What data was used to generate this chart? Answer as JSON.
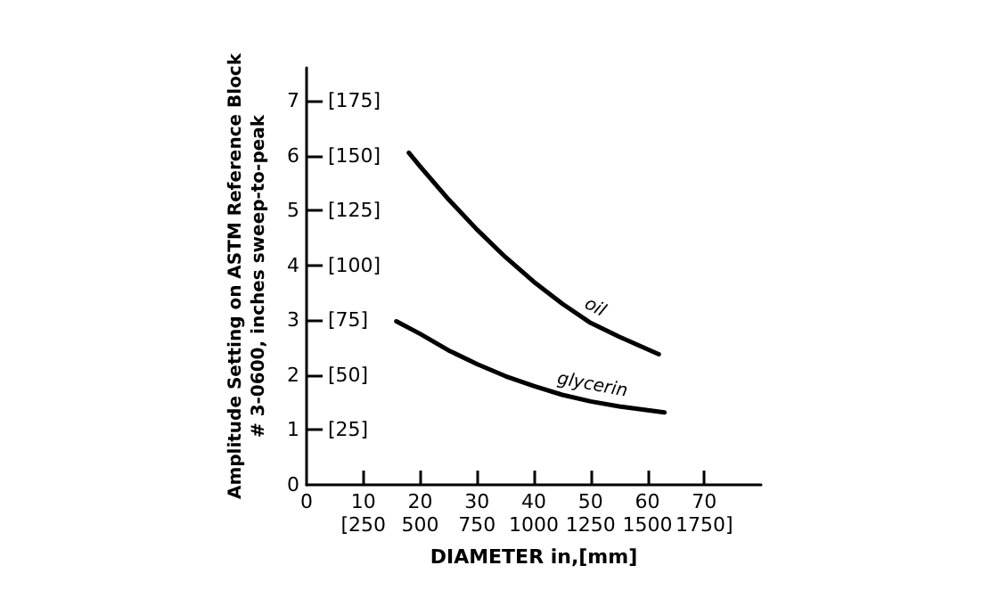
{
  "chart_data": {
    "type": "line",
    "xlabel": "DIAMETER in,[mm]",
    "ylabel": "Amplitude Setting on ASTM Reference Block\n# 3-0600, inches sweep-to-peak",
    "xlim": [
      0,
      80
    ],
    "xticks": [
      0,
      10,
      20,
      30,
      40,
      50,
      60,
      70
    ],
    "x2lim": [
      0,
      2000
    ],
    "x2ticks": [
      {
        "value": 250,
        "label": "[250"
      },
      500,
      750,
      1000,
      1250,
      1500,
      {
        "value": 1750,
        "label": "1750]"
      }
    ],
    "ylim": [
      0,
      7.6
    ],
    "yticks": [
      0,
      1,
      2,
      3,
      4,
      5,
      6,
      7
    ],
    "y2lim": [
      0,
      190
    ],
    "y2ticks": [
      {
        "value": 25,
        "label": "[25]"
      },
      {
        "value": 50,
        "label": "[50]"
      },
      {
        "value": 75,
        "label": "[75]"
      },
      {
        "value": 100,
        "label": "[100]"
      },
      {
        "value": 125,
        "label": "[125]"
      },
      {
        "value": 150,
        "label": "[150]"
      },
      {
        "value": 175,
        "label": "[175]"
      }
    ],
    "grid": false,
    "legend": false,
    "marker": "none",
    "line_style": "solid",
    "series": [
      {
        "name": "oil",
        "color": "#000000",
        "x": [
          18,
          20,
          25,
          30,
          35,
          40,
          45,
          50,
          55,
          62
        ],
        "values": [
          6.05,
          5.8,
          5.2,
          4.65,
          4.15,
          3.7,
          3.3,
          2.95,
          2.7,
          2.38
        ]
      },
      {
        "name": "glycerin",
        "color": "#000000",
        "x": [
          15.8,
          20,
          25,
          30,
          35,
          40,
          45,
          50,
          55,
          63
        ],
        "values": [
          2.98,
          2.75,
          2.45,
          2.2,
          1.98,
          1.8,
          1.64,
          1.52,
          1.43,
          1.32
        ]
      }
    ]
  }
}
